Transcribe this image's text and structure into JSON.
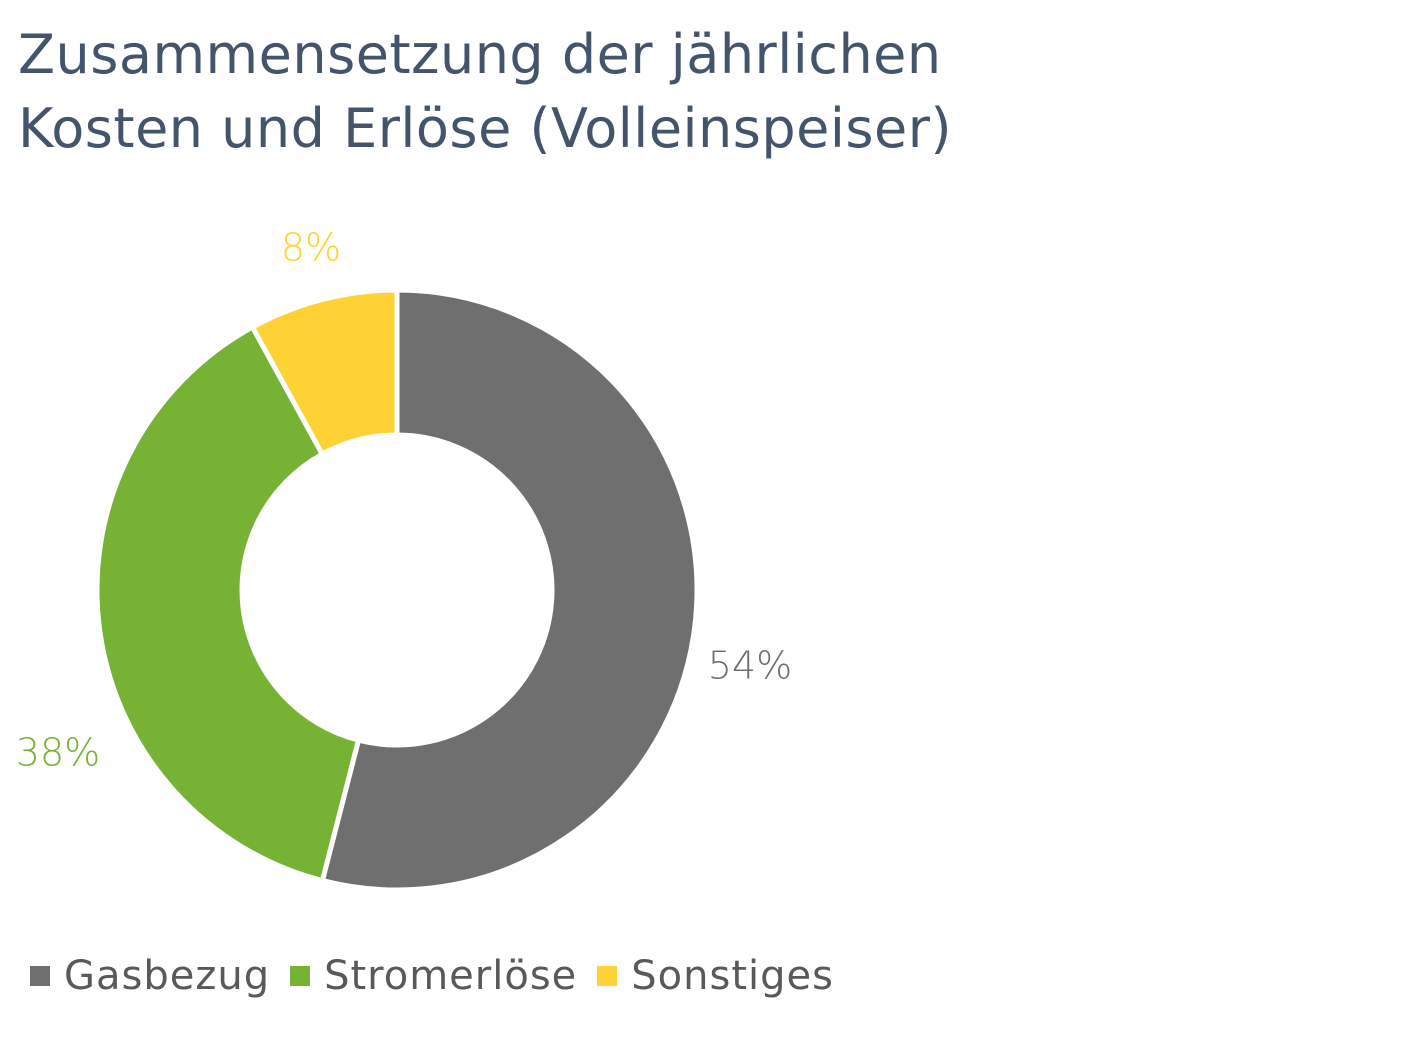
{
  "title": {
    "line1": "Zusammensetzung der jährlichen",
    "line2": "Kosten und Erlöse (Volleinspeiser)"
  },
  "chart_data": {
    "type": "pie",
    "variant": "donut",
    "categories": [
      "Gasbezug",
      "Stromerlöse",
      "Sonstiges"
    ],
    "values": [
      54,
      38,
      8
    ],
    "unit": "%",
    "data_labels": [
      "54%",
      "38%",
      "8%"
    ],
    "colors": [
      "#6f6f6f",
      "#76b233",
      "#fed234"
    ],
    "legend_position": "bottom-left"
  },
  "legend": {
    "items": [
      {
        "label": "Gasbezug",
        "color": "#6f6f6f"
      },
      {
        "label": "Stromerlöse",
        "color": "#76b233"
      },
      {
        "label": "Sonstiges",
        "color": "#fed234"
      }
    ]
  },
  "colors": {
    "title": "#44546a",
    "legend_text": "#595959",
    "separator": "#ffffff"
  }
}
